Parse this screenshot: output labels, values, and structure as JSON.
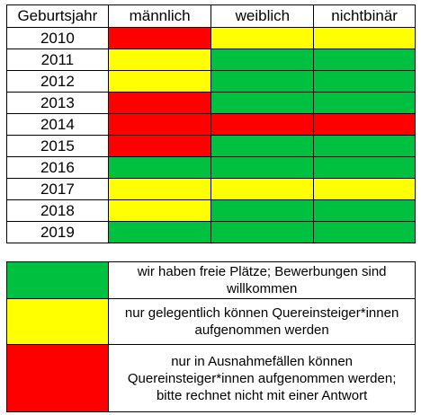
{
  "colors": {
    "green": "#00c040",
    "yellow": "#ffff00",
    "red": "#ff0000"
  },
  "table": {
    "headers": [
      "Geburtsjahr",
      "männlich",
      "weiblich",
      "nichtbinär"
    ],
    "rows": [
      {
        "year": "2010",
        "status": [
          "red",
          "yellow",
          "yellow"
        ]
      },
      {
        "year": "2011",
        "status": [
          "yellow",
          "green",
          "green"
        ]
      },
      {
        "year": "2012",
        "status": [
          "yellow",
          "green",
          "green"
        ]
      },
      {
        "year": "2013",
        "status": [
          "red",
          "green",
          "green"
        ]
      },
      {
        "year": "2014",
        "status": [
          "red",
          "red",
          "red"
        ]
      },
      {
        "year": "2015",
        "status": [
          "red",
          "green",
          "green"
        ]
      },
      {
        "year": "2016",
        "status": [
          "green",
          "green",
          "green"
        ]
      },
      {
        "year": "2017",
        "status": [
          "yellow",
          "yellow",
          "yellow"
        ]
      },
      {
        "year": "2018",
        "status": [
          "yellow",
          "green",
          "green"
        ]
      },
      {
        "year": "2019",
        "status": [
          "green",
          "green",
          "green"
        ]
      }
    ]
  },
  "legend": [
    {
      "color": "green",
      "text": "wir haben freie Plätze; Bewerbungen sind\nwillkommen"
    },
    {
      "color": "yellow",
      "text": "nur gelegentlich können Quereinsteiger*innen\naufgenommen werden"
    },
    {
      "color": "red",
      "text": "nur in Ausnahmefällen können\nQuereinsteiger*innen aufgenommen werden;\nbitte rechnet nicht mit einer Antwort"
    }
  ]
}
